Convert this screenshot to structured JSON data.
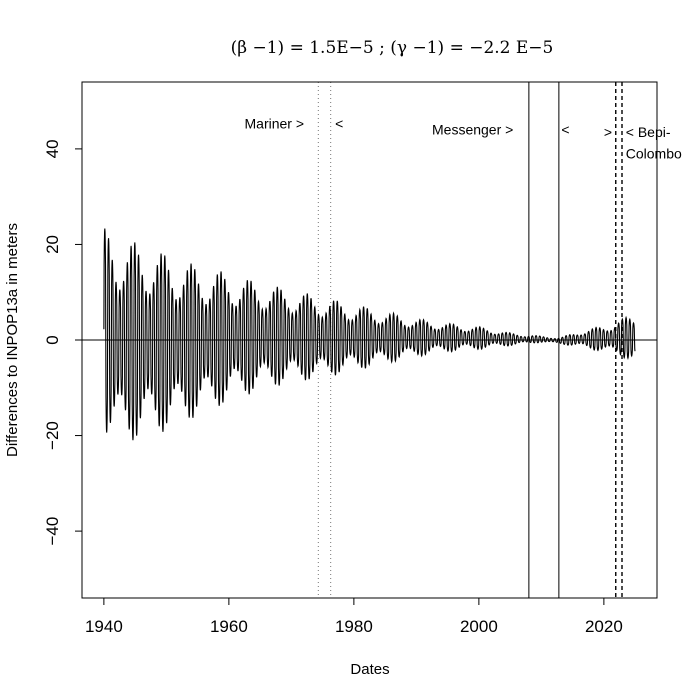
{
  "chart_data": {
    "type": "line",
    "title": "(β −1) = 1.5E−5 ; (γ −1) = −2.2 E−5",
    "xlabel": "Dates",
    "ylabel": "Differences to INPOP13a in meters",
    "xlim": [
      1936.5,
      2028.5
    ],
    "ylim": [
      -54,
      54
    ],
    "xticks": [
      1940,
      1960,
      1980,
      2000,
      2020
    ],
    "yticks": [
      -40,
      -20,
      0,
      20,
      40
    ],
    "grid": false,
    "legend": "none",
    "horizontal_reference_line": 0,
    "series": [
      {
        "description_envelope": [
          {
            "x": 1940.0,
            "upper": 23.5,
            "lower": -19
          },
          {
            "x": 1942.0,
            "upper": 21.5,
            "lower": -22
          },
          {
            "x": 1945.0,
            "upper": 20.5,
            "lower": -21
          },
          {
            "x": 1950.0,
            "upper": 18.0,
            "lower": -19
          },
          {
            "x": 1955.0,
            "upper": 15.5,
            "lower": -16
          },
          {
            "x": 1960.0,
            "upper": 14.0,
            "lower": -13
          },
          {
            "x": 1965.0,
            "upper": 12.0,
            "lower": -10.5
          },
          {
            "x": 1970.0,
            "upper": 10.5,
            "lower": -9
          },
          {
            "x": 1975.0,
            "upper": 9.0,
            "lower": -8
          },
          {
            "x": 1980.0,
            "upper": 7.5,
            "lower": -6.5
          },
          {
            "x": 1985.0,
            "upper": 6.0,
            "lower": -5
          },
          {
            "x": 1990.0,
            "upper": 4.5,
            "lower": -3.5
          },
          {
            "x": 1995.0,
            "upper": 3.5,
            "lower": -2.5
          },
          {
            "x": 2000.0,
            "upper": 2.8,
            "lower": -2.0
          },
          {
            "x": 2005.0,
            "upper": 1.5,
            "lower": -1.2
          },
          {
            "x": 2010.0,
            "upper": 0.8,
            "lower": -0.5
          },
          {
            "x": 2013.0,
            "upper": 0.5,
            "lower": -0.8
          },
          {
            "x": 2016.0,
            "upper": 1.8,
            "lower": -1.5
          },
          {
            "x": 2020.0,
            "upper": 3.0,
            "lower": -2.5
          },
          {
            "x": 2023.0,
            "upper": 4.5,
            "lower": -3.5
          },
          {
            "x": 2025.0,
            "upper": 5.5,
            "lower": -5.0
          }
        ],
        "x_start": 1940.0,
        "x_end": 2025.0,
        "oscillation_period_years": 0.6
      }
    ],
    "vertical_lines": [
      {
        "x": 1974.3,
        "style": "dotted"
      },
      {
        "x": 1976.3,
        "style": "dotted"
      },
      {
        "x": 2008.0,
        "style": "solid"
      },
      {
        "x": 2012.8,
        "style": "solid"
      },
      {
        "x": 2021.9,
        "style": "dashed"
      },
      {
        "x": 2022.9,
        "style": "dashed"
      }
    ],
    "annotations": [
      {
        "text": "Mariner >",
        "x": 1962.5,
        "y": 44.3,
        "anchor": "start"
      },
      {
        "text": "<",
        "x": 1977.0,
        "y": 44.3,
        "anchor": "start"
      },
      {
        "text": "Messenger >",
        "x": 1992.5,
        "y": 43.0,
        "anchor": "start"
      },
      {
        "text": "<",
        "x": 2013.2,
        "y": 43.0,
        "anchor": "start"
      },
      {
        "text": ">",
        "x": 2020.0,
        "y": 42.5,
        "anchor": "start"
      },
      {
        "text": "< Bepi-",
        "x": 2023.5,
        "y": 42.5,
        "anchor": "start"
      },
      {
        "text": "Colombo",
        "x": 2023.5,
        "y": 38.0,
        "anchor": "start"
      }
    ]
  }
}
